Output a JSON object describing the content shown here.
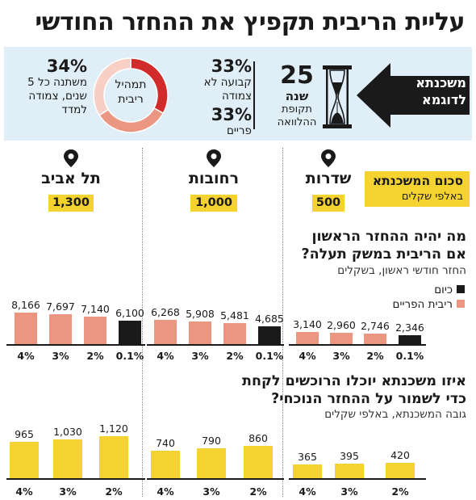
{
  "title": "עליית הריבית תקפיץ את ההחזר החודשי",
  "example": {
    "label": "משכנתא לדוגמא",
    "years_value": "25",
    "years_unit": "שנה",
    "period_label": "תקופת ההלוואה"
  },
  "composition": {
    "center_label": "תמהיל ריבית",
    "slices": [
      {
        "percent": "33%",
        "label": "קבועה לא צמודה",
        "value": 33,
        "color": "#d12b2b"
      },
      {
        "percent": "33%",
        "label": "פריים",
        "value": 33,
        "color": "#eb9680"
      },
      {
        "percent": "34%",
        "label": "משתנה כל 5 שנים, צמודה למדד",
        "value": 34,
        "color": "#f7cfc4"
      }
    ]
  },
  "amount_legend": {
    "title": "סכום המשכנתא",
    "subtitle": "באלפי שקלים"
  },
  "cities": [
    {
      "name": "שדרות",
      "amount": "500"
    },
    {
      "name": "רחובות",
      "amount": "1,000"
    },
    {
      "name": "תל אביב",
      "amount": "1,300"
    }
  ],
  "question1": {
    "title_line1": "מה יהיה ההחזר הראשון",
    "title_line2": "אם הריבית במשק תעלה?",
    "subtitle": "החזר חודשי ראשון, בשקלים"
  },
  "question2": {
    "title_line1": "איזו משכנתא יוכלו הרוכשים לקחת",
    "title_line2": "כדי לשמור על ההחזר הנוכחי?",
    "subtitle": "גובה המשכנתא, באלפי שקלים"
  },
  "legend": [
    {
      "label": "כיום",
      "color": "#1a1a1a"
    },
    {
      "label": "ריבית הפריים",
      "color": "#eb9680"
    }
  ],
  "chart_data": [
    {
      "type": "bar",
      "title": "מה יהיה ההחזר הראשון אם הריבית במשק תעלה?",
      "subtitle": "החזר חודשי ראשון, בשקלים",
      "categories": [
        "4%",
        "3%",
        "2%",
        "0.1%"
      ],
      "ylim": [
        0,
        8500
      ],
      "series": [
        {
          "name": "שדרות",
          "values": [
            3140,
            2960,
            2746,
            2346
          ],
          "labels": [
            "3,140",
            "2,960",
            "2,746",
            "2,346"
          ]
        },
        {
          "name": "רחובות",
          "values": [
            6268,
            5908,
            5481,
            4685
          ],
          "labels": [
            "6,268",
            "5,908",
            "5,481",
            "4,685"
          ]
        },
        {
          "name": "תל אביב",
          "values": [
            8166,
            7697,
            7140,
            6100
          ],
          "labels": [
            "8,166",
            "7,697",
            "7,140",
            "6,100"
          ]
        }
      ],
      "bar_colors": [
        "#eb9680",
        "#eb9680",
        "#eb9680",
        "#1a1a1a"
      ]
    },
    {
      "type": "bar",
      "title": "איזו משכנתא יוכלו הרוכשים לקחת כדי לשמור על ההחזר הנוכחי?",
      "subtitle": "גובה המשכנתא, באלפי שקלים",
      "categories": [
        "4%",
        "3%",
        "2%"
      ],
      "ylim": [
        0,
        1200
      ],
      "series": [
        {
          "name": "שדרות",
          "values": [
            365,
            395,
            420
          ],
          "labels": [
            "365",
            "395",
            "420"
          ]
        },
        {
          "name": "רחובות",
          "values": [
            740,
            790,
            860
          ],
          "labels": [
            "740",
            "790",
            "860"
          ]
        },
        {
          "name": "תל אביב",
          "values": [
            965,
            1030,
            1120
          ],
          "labels": [
            "965",
            "1,030",
            "1,120"
          ]
        }
      ],
      "bar_colors": [
        "#f4d331",
        "#f4d331",
        "#f4d331"
      ]
    }
  ]
}
